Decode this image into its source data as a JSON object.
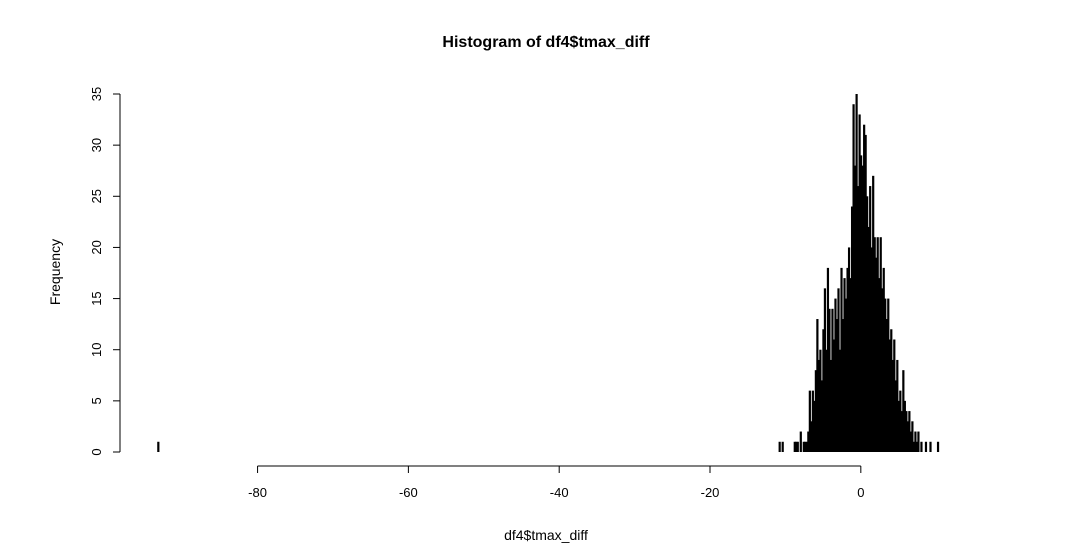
{
  "chart_data": {
    "type": "bar",
    "title": "Histogram of df4$tmax_diff",
    "xlabel": "df4$tmax_diff",
    "ylabel": "Frequency",
    "xlim": [
      -94,
      10.5
    ],
    "ylim": [
      0,
      35
    ],
    "bin_width": 0.1,
    "x_ticks": [
      -80,
      -60,
      -40,
      -20,
      0
    ],
    "y_ticks": [
      0,
      5,
      10,
      15,
      20,
      25,
      30,
      35
    ],
    "grid": false,
    "legend": "none",
    "bar_color": "#000000",
    "bins": [
      {
        "x": -93.2,
        "count": 1
      },
      {
        "x": -10.8,
        "count": 1
      },
      {
        "x": -10.4,
        "count": 1
      },
      {
        "x": -8.8,
        "count": 1
      },
      {
        "x": -8.6,
        "count": 1
      },
      {
        "x": -8.4,
        "count": 1
      },
      {
        "x": -8.0,
        "count": 2
      },
      {
        "x": -7.6,
        "count": 1
      },
      {
        "x": -7.4,
        "count": 1
      },
      {
        "x": -7.2,
        "count": 1
      },
      {
        "x": -7.0,
        "count": 2
      },
      {
        "x": -6.8,
        "count": 6
      },
      {
        "x": -6.6,
        "count": 3
      },
      {
        "x": -6.4,
        "count": 6
      },
      {
        "x": -6.2,
        "count": 5
      },
      {
        "x": -6.0,
        "count": 8
      },
      {
        "x": -5.8,
        "count": 13
      },
      {
        "x": -5.6,
        "count": 9
      },
      {
        "x": -5.4,
        "count": 10
      },
      {
        "x": -5.2,
        "count": 7
      },
      {
        "x": -5.0,
        "count": 12
      },
      {
        "x": -4.8,
        "count": 16
      },
      {
        "x": -4.6,
        "count": 10
      },
      {
        "x": -4.4,
        "count": 18
      },
      {
        "x": -4.2,
        "count": 14
      },
      {
        "x": -4.0,
        "count": 9
      },
      {
        "x": -3.8,
        "count": 14
      },
      {
        "x": -3.6,
        "count": 11
      },
      {
        "x": -3.4,
        "count": 15
      },
      {
        "x": -3.2,
        "count": 13
      },
      {
        "x": -3.0,
        "count": 16
      },
      {
        "x": -2.8,
        "count": 10
      },
      {
        "x": -2.6,
        "count": 18
      },
      {
        "x": -2.4,
        "count": 13
      },
      {
        "x": -2.2,
        "count": 17
      },
      {
        "x": -2.0,
        "count": 15
      },
      {
        "x": -1.8,
        "count": 18
      },
      {
        "x": -1.6,
        "count": 20
      },
      {
        "x": -1.4,
        "count": 17
      },
      {
        "x": -1.2,
        "count": 24
      },
      {
        "x": -1.0,
        "count": 34
      },
      {
        "x": -0.8,
        "count": 28
      },
      {
        "x": -0.6,
        "count": 35
      },
      {
        "x": -0.4,
        "count": 26
      },
      {
        "x": -0.2,
        "count": 33
      },
      {
        "x": 0.0,
        "count": 29
      },
      {
        "x": 0.2,
        "count": 28
      },
      {
        "x": 0.4,
        "count": 32
      },
      {
        "x": 0.6,
        "count": 31
      },
      {
        "x": 0.8,
        "count": 25
      },
      {
        "x": 1.0,
        "count": 22
      },
      {
        "x": 1.2,
        "count": 26
      },
      {
        "x": 1.4,
        "count": 20
      },
      {
        "x": 1.6,
        "count": 27
      },
      {
        "x": 1.8,
        "count": 21
      },
      {
        "x": 2.0,
        "count": 19
      },
      {
        "x": 2.2,
        "count": 21
      },
      {
        "x": 2.4,
        "count": 17
      },
      {
        "x": 2.6,
        "count": 21
      },
      {
        "x": 2.8,
        "count": 16
      },
      {
        "x": 3.0,
        "count": 18
      },
      {
        "x": 3.2,
        "count": 15
      },
      {
        "x": 3.4,
        "count": 13
      },
      {
        "x": 3.6,
        "count": 15
      },
      {
        "x": 3.8,
        "count": 11
      },
      {
        "x": 4.0,
        "count": 12
      },
      {
        "x": 4.2,
        "count": 9
      },
      {
        "x": 4.4,
        "count": 11
      },
      {
        "x": 4.6,
        "count": 7
      },
      {
        "x": 4.8,
        "count": 9
      },
      {
        "x": 5.0,
        "count": 5
      },
      {
        "x": 5.2,
        "count": 6
      },
      {
        "x": 5.4,
        "count": 4
      },
      {
        "x": 5.6,
        "count": 8
      },
      {
        "x": 5.8,
        "count": 5
      },
      {
        "x": 6.0,
        "count": 4
      },
      {
        "x": 6.2,
        "count": 3
      },
      {
        "x": 6.4,
        "count": 4
      },
      {
        "x": 6.6,
        "count": 2
      },
      {
        "x": 6.8,
        "count": 3
      },
      {
        "x": 7.0,
        "count": 1
      },
      {
        "x": 7.2,
        "count": 2
      },
      {
        "x": 7.4,
        "count": 1
      },
      {
        "x": 7.6,
        "count": 2
      },
      {
        "x": 8.0,
        "count": 1
      },
      {
        "x": 8.6,
        "count": 1
      },
      {
        "x": 9.2,
        "count": 1
      },
      {
        "x": 10.2,
        "count": 1
      }
    ]
  }
}
